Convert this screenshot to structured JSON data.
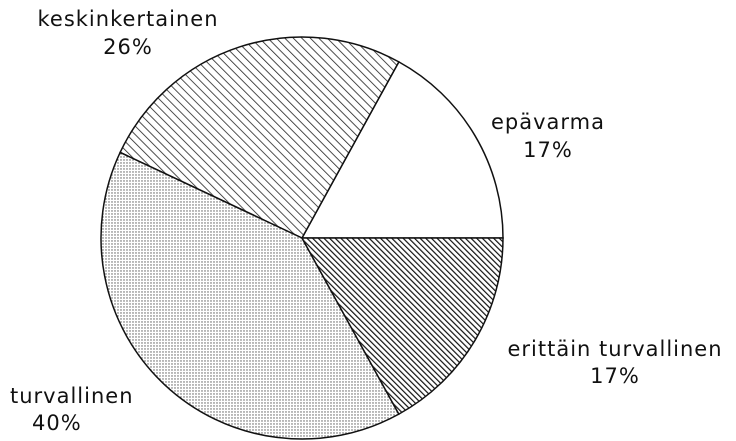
{
  "chart_data": {
    "type": "pie",
    "categories": [
      "epävarma",
      "keskinkertainen",
      "turvallinen",
      "erittäin turvallinen"
    ],
    "values": [
      17,
      26,
      40,
      17
    ],
    "value_labels": [
      "17%",
      "26%",
      "40%",
      "17%"
    ],
    "patterns": [
      "none",
      "hatch",
      "dots",
      "hatch-dense"
    ]
  }
}
